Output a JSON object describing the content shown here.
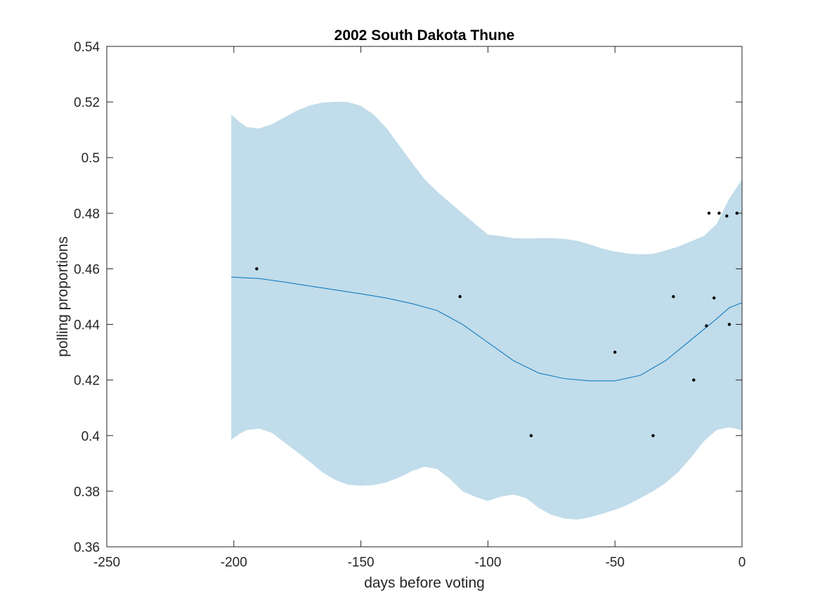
{
  "chart_data": {
    "type": "line",
    "title": "2002 South Dakota Thune",
    "xlabel": "days before voting",
    "ylabel": "polling proportions",
    "xlim": [
      -250,
      0
    ],
    "ylim": [
      0.36,
      0.54
    ],
    "xticks": [
      -250,
      -200,
      -150,
      -100,
      -50,
      0
    ],
    "xtick_labels": [
      "-250",
      "-200",
      "-150",
      "-100",
      "-50",
      "0"
    ],
    "yticks": [
      0.36,
      0.38,
      0.4,
      0.42,
      0.44,
      0.46,
      0.48,
      0.5,
      0.52,
      0.54
    ],
    "ytick_labels": [
      "0.36",
      "0.38",
      "0.4",
      "0.42",
      "0.44",
      "0.46",
      "0.48",
      "0.5",
      "0.52",
      "0.54"
    ],
    "grid": false,
    "colors": {
      "band": "#c1dcea",
      "line": "#0072bd",
      "points": "#000000",
      "axes": "#262626"
    },
    "band": {
      "x": [
        -201,
        -198,
        -195,
        -190,
        -185,
        -180,
        -175,
        -170,
        -165,
        -160,
        -155,
        -150,
        -145,
        -140,
        -135,
        -130,
        -125,
        -120,
        -115,
        -110,
        -105,
        -100,
        -95,
        -90,
        -85,
        -80,
        -75,
        -70,
        -65,
        -60,
        -55,
        -50,
        -45,
        -40,
        -35,
        -30,
        -25,
        -20,
        -15,
        -10,
        -5,
        0
      ],
      "upper": [
        0.5155,
        0.513,
        0.511,
        0.5105,
        0.512,
        0.5145,
        0.517,
        0.5188,
        0.5198,
        0.5201,
        0.52,
        0.5186,
        0.5155,
        0.5107,
        0.5045,
        0.4983,
        0.4923,
        0.4878,
        0.4838,
        0.48,
        0.4761,
        0.4723,
        0.4718,
        0.471,
        0.4709,
        0.471,
        0.471,
        0.4708,
        0.4701,
        0.4688,
        0.4673,
        0.4662,
        0.4655,
        0.4652,
        0.4654,
        0.4666,
        0.468,
        0.4699,
        0.4718,
        0.4761,
        0.4853,
        0.4921
      ],
      "lower": [
        0.3985,
        0.4005,
        0.402,
        0.4025,
        0.401,
        0.3975,
        0.394,
        0.3905,
        0.3867,
        0.384,
        0.3823,
        0.382,
        0.3822,
        0.3832,
        0.3849,
        0.3872,
        0.3888,
        0.388,
        0.3845,
        0.38,
        0.378,
        0.3765,
        0.378,
        0.3788,
        0.3775,
        0.374,
        0.3715,
        0.3702,
        0.3698,
        0.3706,
        0.3719,
        0.3733,
        0.3751,
        0.3775,
        0.38,
        0.383,
        0.387,
        0.3922,
        0.398,
        0.402,
        0.403,
        0.402
      ]
    },
    "series": [
      {
        "values": [
          [
            -201,
            0.457
          ],
          [
            -190,
            0.4565
          ],
          [
            -180,
            0.4552
          ],
          [
            -170,
            0.4538
          ],
          [
            -160,
            0.4524
          ],
          [
            -150,
            0.451
          ],
          [
            -140,
            0.4495
          ],
          [
            -130,
            0.4475
          ],
          [
            -120,
            0.445
          ],
          [
            -110,
            0.44
          ],
          [
            -100,
            0.4335
          ],
          [
            -90,
            0.427
          ],
          [
            -80,
            0.4225
          ],
          [
            -70,
            0.4205
          ],
          [
            -60,
            0.4197
          ],
          [
            -50,
            0.4197
          ],
          [
            -40,
            0.4217
          ],
          [
            -30,
            0.427
          ],
          [
            -20,
            0.4345
          ],
          [
            -10,
            0.442
          ],
          [
            -5,
            0.446
          ],
          [
            0,
            0.4478
          ]
        ]
      }
    ],
    "points": [
      [
        -191,
        0.46
      ],
      [
        -111,
        0.45
      ],
      [
        -83,
        0.4
      ],
      [
        -50,
        0.43
      ],
      [
        -35,
        0.4
      ],
      [
        -27,
        0.45
      ],
      [
        -19,
        0.42
      ],
      [
        -14,
        0.4395
      ],
      [
        -13,
        0.48
      ],
      [
        -11,
        0.4495
      ],
      [
        -9,
        0.48
      ],
      [
        -6,
        0.479
      ],
      [
        -5,
        0.44
      ],
      [
        -2,
        0.48
      ]
    ]
  }
}
